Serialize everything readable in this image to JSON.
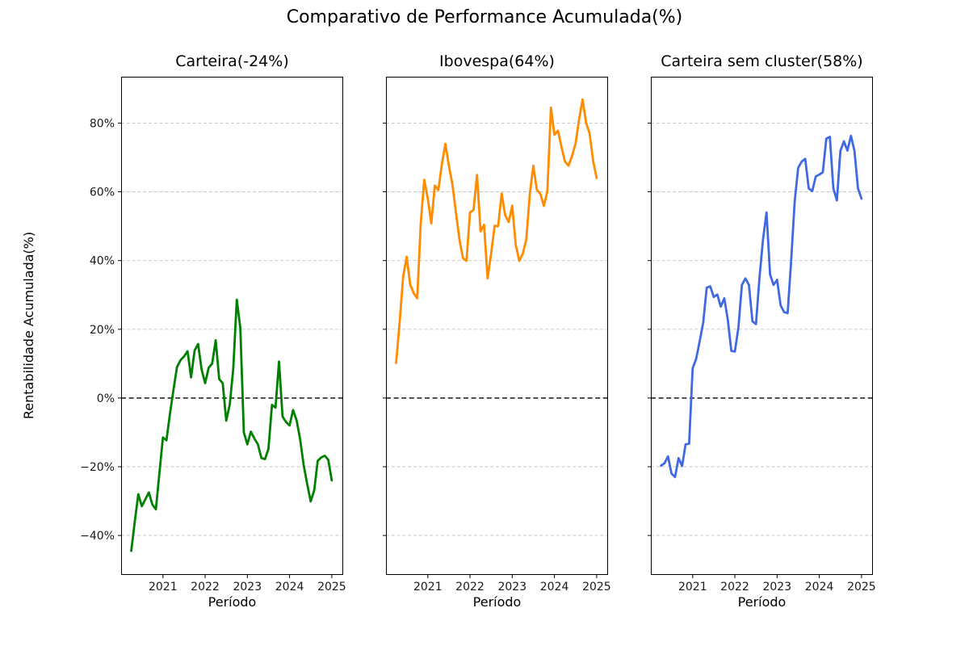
{
  "suptitle": "Comparativo de Performance Acumulada(%)",
  "ylabel": "Rentabilidade Acumulada(%)",
  "xlabel": "Período",
  "axis": {
    "xlim": [
      2020.01,
      2025.27
    ],
    "ylim": [
      -51.5,
      93.5
    ],
    "grid_on": true,
    "grid_color": "#c4c4c4",
    "zero_line_value": 0,
    "zero_line_color": "#000000",
    "xticks": [
      {
        "value": 2021,
        "label": "2021"
      },
      {
        "value": 2022,
        "label": "2022"
      },
      {
        "value": 2023,
        "label": "2023"
      },
      {
        "value": 2024,
        "label": "2024"
      },
      {
        "value": 2025,
        "label": "2025"
      }
    ],
    "yticks": [
      {
        "value": 80,
        "label": "80%"
      },
      {
        "value": 60,
        "label": "60%"
      },
      {
        "value": 40,
        "label": "40%"
      },
      {
        "value": 20,
        "label": "20%"
      },
      {
        "value": 0,
        "label": "0%"
      },
      {
        "value": -20,
        "label": "−20%"
      },
      {
        "value": -40,
        "label": "−40%"
      }
    ],
    "grid_y": [
      80,
      60,
      40,
      20,
      -20,
      -40
    ]
  },
  "chart_data": [
    {
      "type": "line",
      "title": "Carteira(-24%)",
      "final_return_pct": -24,
      "color": "#008000",
      "x_start_decimal": 2020.25,
      "x_start": "2020-04",
      "x_end": "2025-01",
      "freq": "monthly",
      "values": [
        -44.5,
        -36,
        -28,
        -31.5,
        -29.5,
        -27.5,
        -31,
        -32.4,
        -21.9,
        -11.5,
        -12.3,
        -4.6,
        2.4,
        9,
        11,
        12.1,
        13.6,
        6,
        13.8,
        15.7,
        8.3,
        4.3,
        8.8,
        10,
        16.8,
        5.5,
        4.3,
        -6.6,
        -1.9,
        8.6,
        28.6,
        20.4,
        -10,
        -13.5,
        -9.8,
        -11.8,
        -13.5,
        -17.5,
        -17.8,
        -14.8,
        -2,
        -2.8,
        10.6,
        -5.4,
        -7,
        -8,
        -3.5,
        -6.5,
        -12,
        -19.5,
        -25,
        -30.1,
        -26.9,
        -18.3,
        -17.3,
        -16.8,
        -18,
        -24
      ]
    },
    {
      "type": "line",
      "title": "Ibovespa(64%)",
      "final_return_pct": 64,
      "color": "#ff8c00",
      "x_start_decimal": 2020.25,
      "x_start": "2020-04",
      "x_end": "2025-01",
      "freq": "monthly",
      "values": [
        10.2,
        22,
        35.3,
        41.1,
        33,
        30.5,
        29,
        50.8,
        63.5,
        58,
        50.8,
        61.8,
        60.5,
        68,
        74,
        67.6,
        62.2,
        54,
        46.1,
        40.7,
        39.9,
        54,
        54.7,
        64.9,
        48.5,
        50.4,
        34.8,
        42,
        50.1,
        50,
        59.5,
        53.2,
        51.2,
        56,
        44.6,
        39.9,
        42,
        46.1,
        59.4,
        67.6,
        60.6,
        59.4,
        55.9,
        60.2,
        84.5,
        76.6,
        77.8,
        73.1,
        68.8,
        67.6,
        70.4,
        74,
        81,
        86.9,
        80.1,
        77,
        69,
        64
      ]
    },
    {
      "type": "line",
      "title": "Carteira sem cluster(58%)",
      "final_return_pct": 58,
      "color": "#4169e1",
      "x_start_decimal": 2020.25,
      "x_start": "2020-04",
      "x_end": "2025-01",
      "freq": "monthly",
      "values": [
        -19.7,
        -19,
        -17,
        -22,
        -23,
        -17.5,
        -19.8,
        -13.5,
        -13.3,
        8.6,
        11.4,
        16.5,
        21.9,
        32.1,
        32.5,
        29.4,
        30.1,
        26.6,
        29,
        22.7,
        13.7,
        13.5,
        20.4,
        32.9,
        34.8,
        32.9,
        22.3,
        21.5,
        35,
        46.1,
        54,
        36,
        32.9,
        34.4,
        27,
        25,
        24.7,
        39.9,
        57.1,
        67,
        68.8,
        69.6,
        61,
        60.2,
        64.5,
        65,
        65.7,
        75.5,
        76,
        61,
        57.5,
        71.9,
        74.7,
        72,
        76.3,
        71.9,
        61,
        58
      ]
    }
  ]
}
